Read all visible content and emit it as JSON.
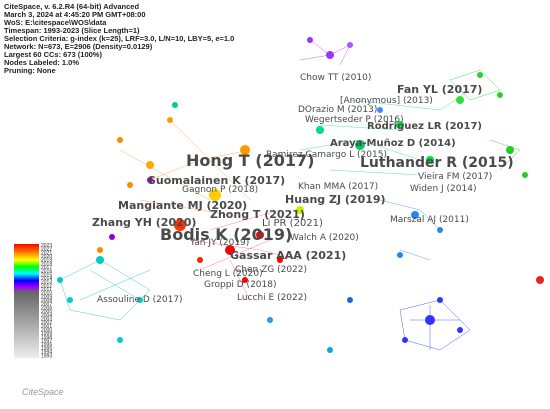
{
  "header": [
    "CiteSpace, v. 6.2.R4 (64-bit) Advanced",
    "March 3, 2024 at 4:45:20 PM GMT+08:00",
    "WoS: E:\\citespace\\WOS\\data",
    "Timespan: 1993-2023 (Slice Length=1)",
    "Selection Criteria: g-index (k=25), LRF=3.0, L/N=10, LBY=5, e=1.0",
    "Network: N=673, E=2906 (Density=0.0129)",
    "Largest 60 CCs: 673 (100%)",
    "Nodes Labeled: 1.0%",
    "Pruning: None"
  ],
  "legend": {
    "years": [
      "2023",
      "2022",
      "2021",
      "2020",
      "2019",
      "2018",
      "2017",
      "2016",
      "2015",
      "2014",
      "2013",
      "2012",
      "2011",
      "2010",
      "2009",
      "2008",
      "2007",
      "2006",
      "2005",
      "2004",
      "2003",
      "2002",
      "2001",
      "2000",
      "1999",
      "1998",
      "1997",
      "1996",
      "1995",
      "1994",
      "1993"
    ]
  },
  "nodes": [
    {
      "label": "Chow TT (2010)"
    },
    {
      "label": "Fan YL (2017)"
    },
    {
      "label": "[Anonymous] (2013)"
    },
    {
      "label": "DOrazio M (2013)"
    },
    {
      "label": "Wegertseder P (2016)"
    },
    {
      "label": "Rodriguez LR (2017)"
    },
    {
      "label": "Araya-Muñoz D (2014)"
    },
    {
      "label": "Hong T (2017)"
    },
    {
      "label": "Ramirez Camargo L (2015)"
    },
    {
      "label": "Luthander R (2015)"
    },
    {
      "label": "Suomalainen K (2017)"
    },
    {
      "label": "Khan MMA (2017)"
    },
    {
      "label": "Vieira FM (2017)"
    },
    {
      "label": "Gagnon P (2018)"
    },
    {
      "label": "Huang ZJ (2019)"
    },
    {
      "label": "Widen J (2014)"
    },
    {
      "label": "Mangiante MJ (2020)"
    },
    {
      "label": "Zhang YH (2020)"
    },
    {
      "label": "Zhong T (2021)"
    },
    {
      "label": "Li PR (2021)"
    },
    {
      "label": "Bodis K (2019)"
    },
    {
      "label": "Marszal AJ (2011)"
    },
    {
      "label": "Gassar AAA (2021)"
    },
    {
      "label": "Walch A (2020)"
    },
    {
      "label": "Yan JY (2019)"
    },
    {
      "label": "Cheng L (2020)"
    },
    {
      "label": "Chen ZG (2022)"
    },
    {
      "label": "Groppi D (2018)"
    },
    {
      "label": "Lucchi E (2022)"
    },
    {
      "label": "Assouline D (2017)"
    }
  ],
  "logo": "CiteSpace"
}
